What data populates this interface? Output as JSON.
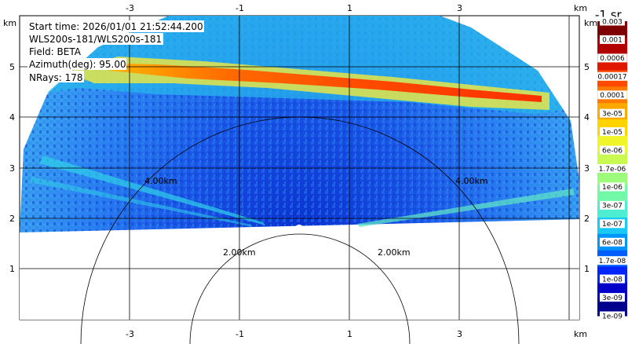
{
  "info": {
    "start_time": "Start time: 2026/01/01 21:52:44.200",
    "instrument": "WLS200s-181/WLS200s-181",
    "field": "Field: BETA",
    "azimuth": "Azimuth(deg): 95.00",
    "nrays": "NRays: 178"
  },
  "axes": {
    "unit": "km",
    "x_ticks": [
      "-3",
      "-1",
      "1",
      "3"
    ],
    "y_ticks": [
      "1",
      "2",
      "3",
      "4",
      "5"
    ]
  },
  "range_rings": [
    "2.00km",
    "2.00km",
    "4.00km",
    "4.00km"
  ],
  "colorbar": {
    "title": "-1 sr",
    "labels": [
      "0.003",
      "0.001",
      "0.0006",
      "0.00017",
      "0.0001",
      "3e-05",
      "1e-05",
      "6e-06",
      "1.7e-06",
      "1e-06",
      "3e-07",
      "1e-07",
      "6e-08",
      "1.7e-08",
      "1e-08",
      "3e-09",
      "1e-09"
    ],
    "colors": [
      "#7f0000",
      "#b20000",
      "#e01800",
      "#ff4a00",
      "#ff7a00",
      "#ffa800",
      "#ffd300",
      "#f0f52a",
      "#c8fa52",
      "#9dfb7c",
      "#72f8a7",
      "#4cedd1",
      "#1ac8f4",
      "#0094ff",
      "#005eff",
      "#0024ff",
      "#0000c8",
      "#00008f"
    ]
  },
  "scan": {
    "background": "#1f60e0",
    "layer_color": "#ff5a00",
    "layer_halo": "#f5e83a",
    "sky_color": "#26c8e8"
  }
}
